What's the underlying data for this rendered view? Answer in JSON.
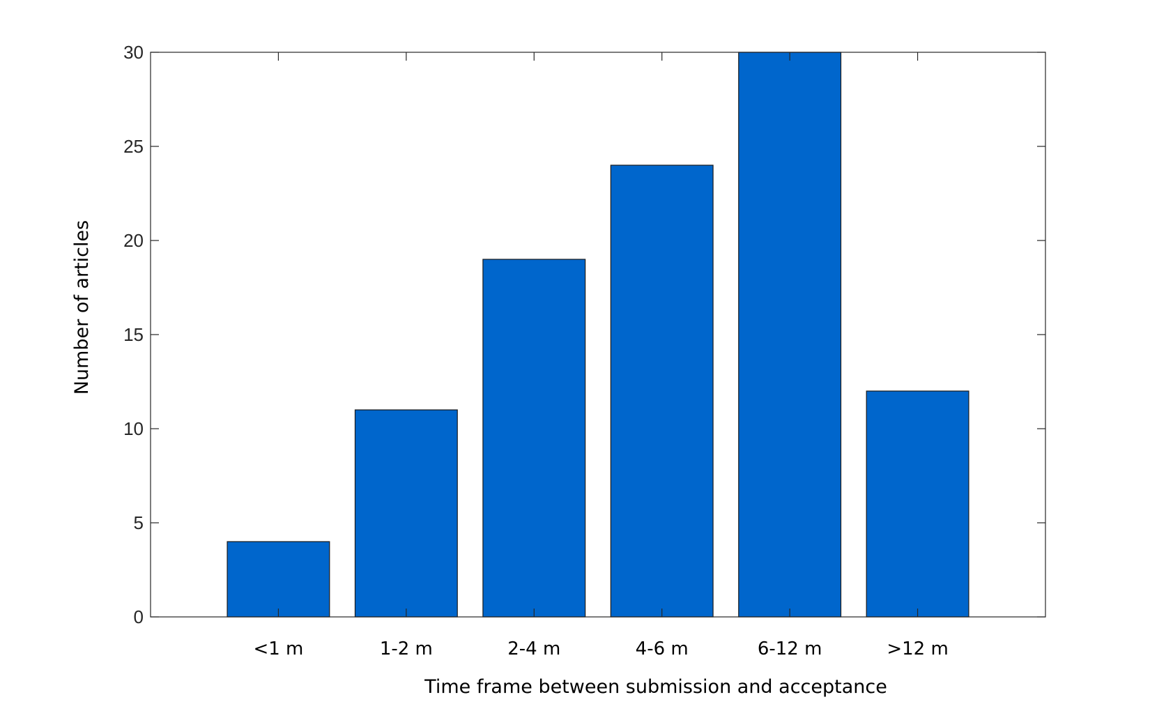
{
  "chart_data": {
    "type": "bar",
    "title": "",
    "xlabel": "Time frame between submission and acceptance",
    "ylabel": "Number of articles",
    "categories": [
      "<1 m",
      "1-2 m",
      "2-4 m",
      "4-6 m",
      "6-12 m",
      ">12 m"
    ],
    "values": [
      4,
      11,
      19,
      24,
      30,
      12
    ],
    "ylim": [
      0,
      30
    ],
    "yticks": [
      "0",
      "5",
      "10",
      "15",
      "20",
      "25",
      "30"
    ],
    "grid": false,
    "legend": "none",
    "colors": {
      "bar_fill": "#0066cc",
      "bar_edge": "#1a1a1a",
      "axis": "#262626"
    }
  }
}
